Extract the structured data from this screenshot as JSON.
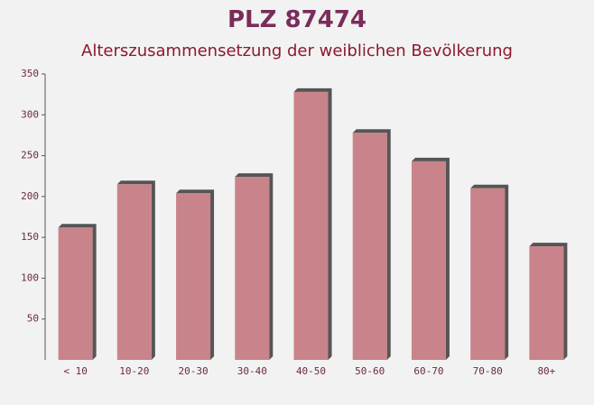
{
  "chart_data": {
    "type": "bar",
    "title": "PLZ 87474",
    "subtitle": "Alterszusammensetzung der weiblichen Bevölkerung",
    "categories": [
      "< 10",
      "10-20",
      "20-30",
      "30-40",
      "40-50",
      "50-60",
      "60-70",
      "70-80",
      "80+"
    ],
    "values": [
      162,
      215,
      204,
      224,
      328,
      278,
      243,
      210,
      139
    ],
    "color": "#c27078",
    "ylim": [
      0,
      350
    ],
    "yticks": [
      50,
      100,
      150,
      200,
      250,
      300,
      350
    ]
  }
}
